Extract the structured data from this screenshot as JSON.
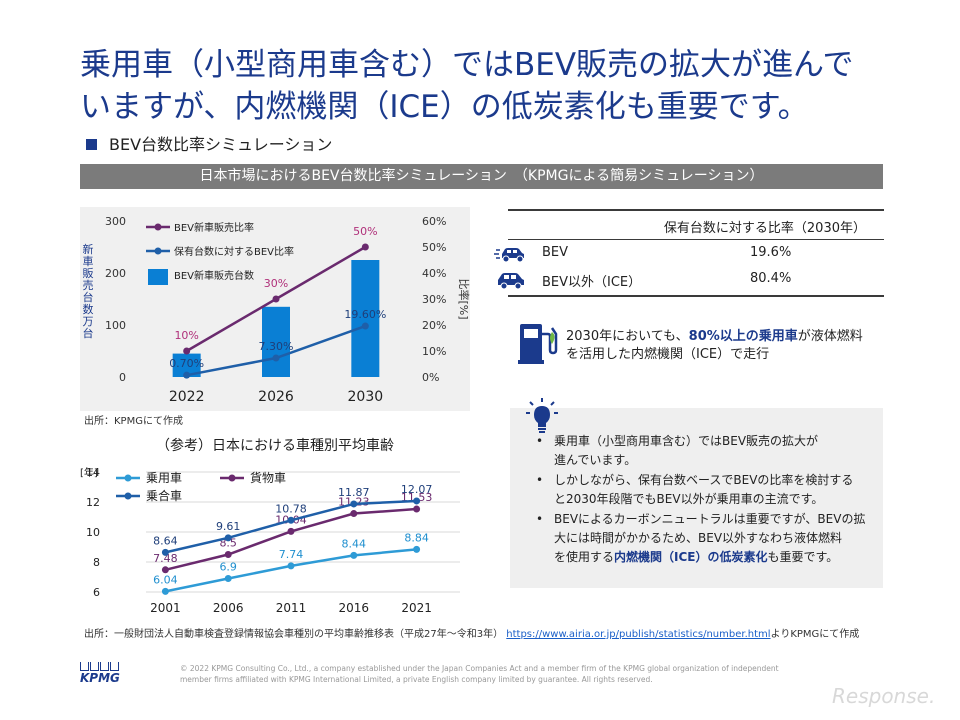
{
  "title_line1": "乗用車（小型商用車含む）ではBEV販売の拡大が進んで",
  "title_line2": "いますが、内燃機関（ICE）の低炭素化も重要です。",
  "subtitle": "BEV台数比率シミュレーション",
  "banner": "日本市場におけるBEV台数比率シミュレーション　（KPMGによる簡易シミュレーション）",
  "source1": "出所：KPMGにて作成",
  "chart2_title": "（参考）日本における車種別平均車齢",
  "source2_prefix": "出所：一般財団法人自動車検査登録情報協会車種別の平均車齢推移表（平成27年～令和3年）",
  "source2_link": "https://www.airia.or.jp/publish/statistics/number.html",
  "source2_suffix": "よりKPMGにて作成",
  "share_table": {
    "header": "保有台数に対する比率（2030年）",
    "rows": [
      {
        "label": "BEV",
        "value": "19.6%",
        "icon": "ev-car-icon"
      },
      {
        "label": "BEV以外（ICE）",
        "value": "80.4%",
        "icon": "car-icon"
      }
    ]
  },
  "fuel_note": {
    "pre": "2030年においても、",
    "bold": "80%以上の乗用車",
    "post1": "が液体燃料",
    "line2": "を活用した内燃機関（ICE）で走行"
  },
  "bullets": [
    {
      "pre": "乗用車（小型商用車含む）ではBEV販売の拡大が",
      "line2": "進んでいます。"
    },
    {
      "pre": "しかしながら、保有台数ベースでBEVの比率を検討する",
      "line2": "と2030年段階でもBEV以外が乗用車の主流です。"
    },
    {
      "pre": "BEVによるカーボンニュートラルは重要ですが、BEVの拡",
      "line2": "大には時間がかかるため、BEV以外すなわち液体燃料",
      "line3_pre": "を使用する",
      "line3_bold": "内燃機関（ICE）の低炭素化",
      "line3_post": "も重要です。"
    }
  ],
  "copyright": "© 2022 KPMG Consulting Co., Ltd., a company established under the Japan Companies Act and a member firm of the KPMG global organization of independent member firms affiliated with KPMG International Limited, a private English company limited by guarantee.  All rights reserved.",
  "kpmg": "KPMG",
  "response": "Response.",
  "colors": {
    "navy": "#1b3a8c",
    "bar": "#0a7fd4",
    "purple": "#6a2a6e",
    "blue_line": "#1f5fa8",
    "light_blue": "#2e9bd6"
  },
  "chart_data": [
    {
      "type": "bar",
      "categories": [
        "2022",
        "2026",
        "2030"
      ],
      "ylabel": "新車販売台数万台",
      "y2label": "比率[%]",
      "ylim": [
        0,
        300
      ],
      "y_ticks": [
        "0",
        "100",
        "200",
        "300"
      ],
      "y2lim": [
        0,
        60
      ],
      "y2_ticks": [
        "0%",
        "10%",
        "20%",
        "30%",
        "40%",
        "50%",
        "60%"
      ],
      "series": [
        {
          "name": "BEV新車販売台数",
          "kind": "bar",
          "axis": "left",
          "values": [
            45,
            135,
            225
          ]
        },
        {
          "name": "BEV新車販売比率",
          "kind": "line",
          "axis": "right",
          "values": [
            10,
            30,
            50
          ],
          "labels": [
            "10%",
            "30%",
            "50%"
          ]
        },
        {
          "name": "保有台数に対するBEV比率",
          "kind": "line",
          "axis": "right",
          "values": [
            0.7,
            7.3,
            19.6
          ],
          "labels": [
            "0.70%",
            "7.30%",
            "19.60%"
          ]
        }
      ],
      "legend": "top-left"
    },
    {
      "type": "line",
      "x": [
        "2001",
        "2006",
        "2011",
        "2016",
        "2021"
      ],
      "ylabel": "[年]",
      "ylim": [
        6,
        14
      ],
      "y_ticks": [
        "6",
        "8",
        "10",
        "12",
        "14"
      ],
      "series": [
        {
          "name": "乗用車",
          "values": [
            6.04,
            6.9,
            7.74,
            8.44,
            8.84
          ],
          "labels": [
            "6.04",
            "6.9",
            "7.74",
            "8.44",
            "8.84"
          ]
        },
        {
          "name": "貨物車",
          "values": [
            7.48,
            8.5,
            10.04,
            11.23,
            11.53
          ],
          "labels": [
            "7.48",
            "8.5",
            "10.04",
            "11.23",
            "11.53"
          ]
        },
        {
          "name": "乗合車",
          "values": [
            8.64,
            9.61,
            10.78,
            11.87,
            12.07
          ],
          "labels": [
            "8.64",
            "9.61",
            "10.78",
            "11.87",
            "12.07"
          ]
        }
      ],
      "legend": "top-left"
    }
  ]
}
